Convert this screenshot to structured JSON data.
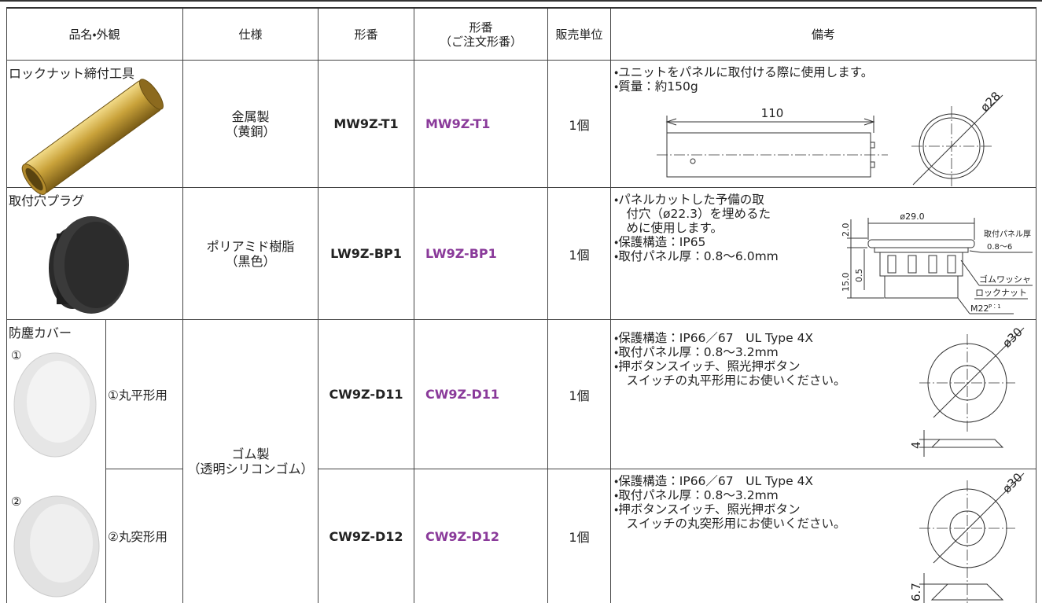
{
  "header": {
    "name": "品名・外観",
    "spec": "仕様",
    "model": "形番",
    "order_code": [
      "形番",
      "（ご注文形番）"
    ],
    "unit": "販売単位",
    "remarks": "備考"
  },
  "rows": [
    {
      "name": "ロックナット締付工具",
      "spec": [
        "金属製",
        "（黄銅）"
      ],
      "model": "MW9Z-T1",
      "order_code": "MW9Z-T1",
      "unit": "1個",
      "remarks": [
        "・ユニットをパネルに取付ける際に使用します。",
        "・質量：約150g"
      ],
      "drawing": {
        "length": "110",
        "diameter": "ø28"
      }
    },
    {
      "name": "取付穴プラグ",
      "spec": [
        "ポリアミド樹脂",
        "（黒色）"
      ],
      "model": "LW9Z-BP1",
      "order_code": "LW9Z-BP1",
      "unit": "1個",
      "remarks": [
        "・パネルカットした予備の取",
        "　付穴（ø22.3）を埋めるた",
        "　めに使用します。",
        "・保護構造：IP65",
        "・取付パネル厚：0.8〜6.0mm"
      ],
      "drawing": {
        "diameter": "ø29.0",
        "cap": "2.0",
        "gap": "0.5",
        "height": "15.0",
        "panel_label": "取付パネル厚",
        "panel_range": "0.8〜6",
        "washer": "ゴムワッシャ",
        "locknut": "ロックナット",
        "thread": "M22",
        "pitch": "P：1"
      }
    }
  ],
  "group": {
    "name": "防塵カバー",
    "spec": [
      "ゴム製",
      "（透明シリコンゴム）"
    ],
    "variants": [
      {
        "marker": "①",
        "type": "①丸平形用",
        "model": "CW9Z-D11",
        "order_code": "CW9Z-D11",
        "unit": "1個",
        "remarks": [
          "・保護構造：IP66／67　UL Type 4X",
          "・取付パネル厚：0.8〜3.2mm",
          "・押ボタンスイッチ、照光押ボタン",
          "　スイッチの丸平形用にお使いください。"
        ],
        "drawing": {
          "diameter": "ø30",
          "height": "4"
        }
      },
      {
        "marker": "②",
        "type": "②丸突形用",
        "model": "CW9Z-D12",
        "order_code": "CW9Z-D12",
        "unit": "1個",
        "remarks": [
          "・保護構造：IP66／67　UL Type 4X",
          "・取付パネル厚：0.8〜3.2mm",
          "・押ボタンスイッチ、照光押ボタン",
          "　スイッチの丸突形用にお使いください。"
        ],
        "drawing": {
          "diameter": "ø30",
          "height": "6.7"
        }
      }
    ]
  }
}
